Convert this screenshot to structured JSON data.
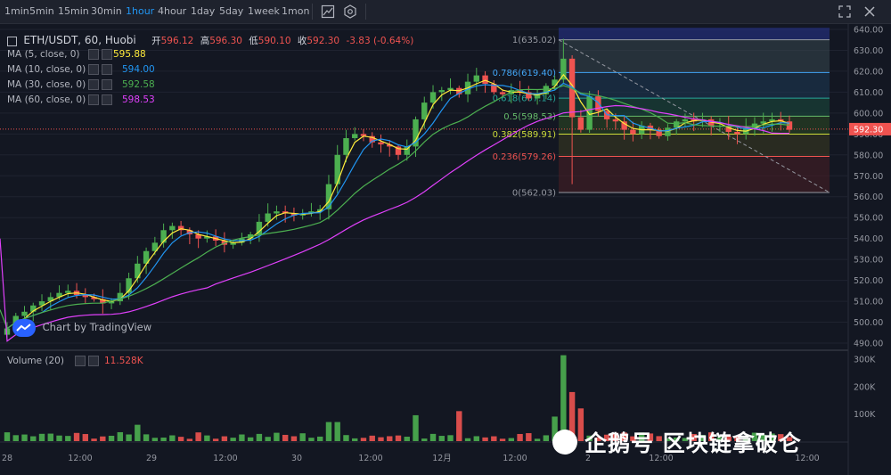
{
  "toolbar": {
    "timeframes": [
      "1min",
      "5min",
      "15min",
      "30min",
      "1hour",
      "4hour",
      "1day",
      "5day",
      "1week",
      "1mon"
    ],
    "active": "1hour"
  },
  "legend": {
    "title": "ETH/USDT, 60, Huobi",
    "ohlc": {
      "o_label": "开",
      "o": "596.12",
      "h_label": "高",
      "h": "596.30",
      "l_label": "低",
      "l": "590.10",
      "c_label": "收",
      "c": "592.30",
      "chg": "-3.83 (-0.64%)"
    },
    "ma": [
      {
        "label": "MA (5, close, 0)",
        "value": "595.88",
        "color": "#ffeb3b"
      },
      {
        "label": "MA (10, close, 0)",
        "value": "594.00",
        "color": "#2196f3"
      },
      {
        "label": "MA (30, close, 0)",
        "value": "592.58",
        "color": "#4caf50"
      },
      {
        "label": "MA (60, close, 0)",
        "value": "598.53",
        "color": "#e040fb"
      }
    ],
    "volume_label": "Volume (20)",
    "volume_value": "11.528K"
  },
  "watermark": "Chart by TradingView",
  "overlay_text": "企鹅号 区块链拿破仑",
  "colors": {
    "up": "#26a69a",
    "up_bright": "#4caf50",
    "down": "#ef5350",
    "bg": "#131722",
    "text": "#b2b5be",
    "price_tag": "#ef5350"
  },
  "price_axis": {
    "ticks": [
      "640.00",
      "630.00",
      "620.00",
      "610.00",
      "600.00",
      "590.00",
      "580.00",
      "570.00",
      "560.00",
      "550.00",
      "540.00",
      "530.00",
      "520.00",
      "510.00",
      "500.00",
      "490.00"
    ],
    "last_price": "592.30"
  },
  "volume_axis": {
    "ticks": [
      "300K",
      "200K",
      "100K"
    ]
  },
  "time_axis": {
    "labels": [
      "28",
      "12:00",
      "29",
      "12:00",
      "30",
      "12:00",
      "12月",
      "12:00",
      "2",
      "12:00",
      "12:00"
    ]
  },
  "fib_levels": [
    {
      "ratio": "1",
      "price": "635.02",
      "label": "1(635.02)",
      "color": "#9598a1"
    },
    {
      "ratio": "0.786",
      "price": "619.40",
      "label": "0.786(619.40)",
      "color": "#42a5f5"
    },
    {
      "ratio": "0.618",
      "price": "607.14",
      "label": "0.618(607.14)",
      "color": "#26a69a"
    },
    {
      "ratio": "0.5",
      "price": "598.53",
      "label": "0.5(598.53)",
      "color": "#66bb6a"
    },
    {
      "ratio": "0.382",
      "price": "589.91",
      "label": "0.382(589.91)",
      "color": "#cddc39"
    },
    {
      "ratio": "0.236",
      "price": "579.26",
      "label": "0.236(579.26)",
      "color": "#ef5350"
    },
    {
      "ratio": "0",
      "price": "562.03",
      "label": "0(562.03)",
      "color": "#9598a1"
    }
  ],
  "chart_data": {
    "type": "candlestick",
    "symbol": "ETH/USDT",
    "interval": "60",
    "exchange": "Huobi",
    "price_range": [
      485,
      642
    ],
    "volume_range": [
      0,
      330000
    ],
    "close_series_approx": [
      497,
      503,
      505,
      508,
      510,
      512,
      514,
      515,
      513,
      512,
      511,
      509,
      510,
      514,
      521,
      528,
      534,
      538,
      544,
      546,
      544,
      542,
      540,
      541,
      539,
      537,
      538,
      540,
      542,
      548,
      552,
      553,
      552,
      551,
      552,
      553,
      554,
      566,
      580,
      588,
      590,
      589,
      586,
      585,
      584,
      580,
      584,
      597,
      605,
      610,
      611,
      612,
      609,
      615,
      618,
      614,
      610,
      609,
      611,
      610,
      607,
      609,
      613,
      616,
      626,
      598,
      592,
      608,
      601,
      597,
      596,
      592,
      590,
      594,
      592,
      589,
      593,
      596,
      597,
      596,
      597,
      594,
      594,
      591,
      590,
      593,
      595,
      596,
      597,
      596,
      592
    ]
  }
}
